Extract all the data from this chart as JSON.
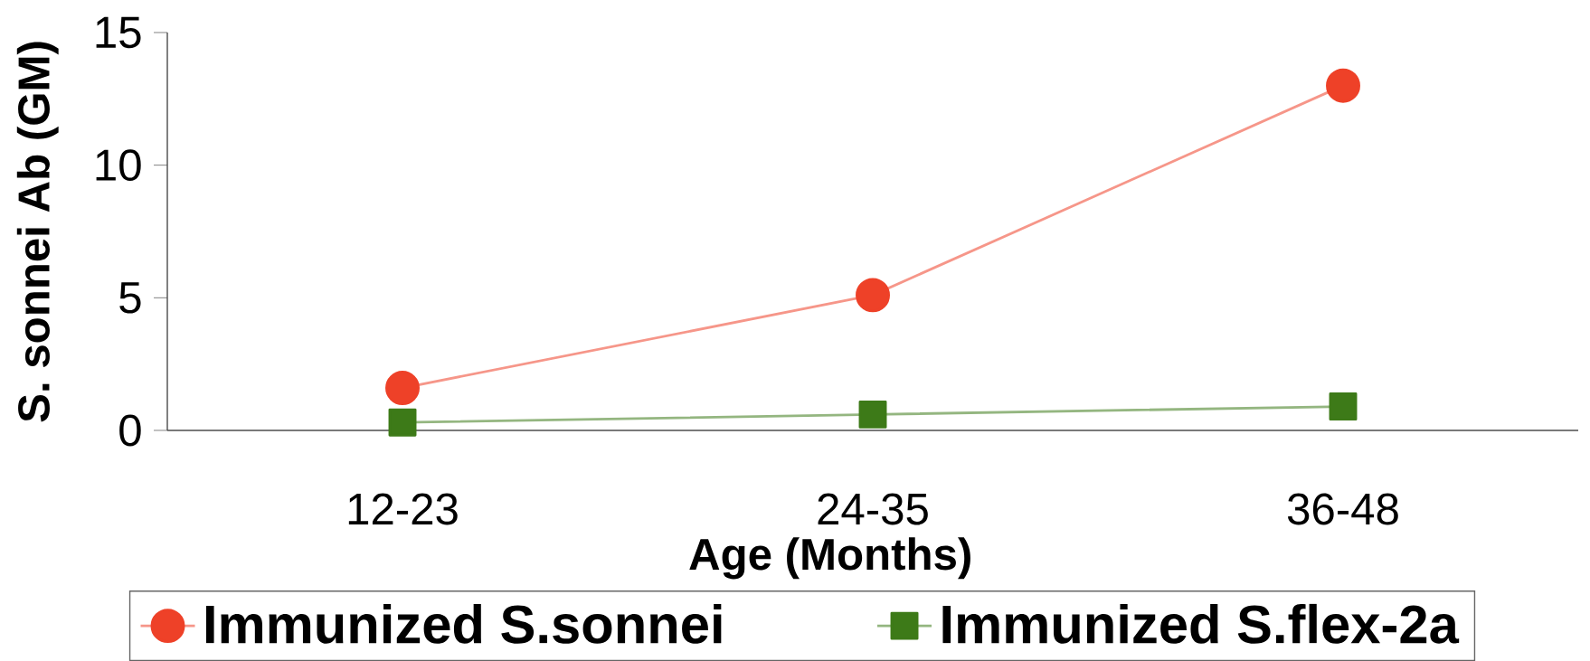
{
  "chart_data": {
    "type": "line",
    "xlabel": "Age (Months)",
    "ylabel": "S. sonnei Ab (GM)",
    "categories": [
      "12-23",
      "24-35",
      "36-48"
    ],
    "series": [
      {
        "name": "Immunized S.sonnei",
        "color": "#ee4128",
        "marker": "circle",
        "values": [
          1.6,
          5.1,
          13.0
        ]
      },
      {
        "name": "Immunized S.flex-2a",
        "color": "#3d7a18",
        "marker": "square",
        "values": [
          0.3,
          0.6,
          0.9
        ]
      }
    ],
    "ylim": [
      0,
      15
    ],
    "yticks": [
      0,
      5,
      10,
      15
    ],
    "grid": false,
    "legend": "bottom"
  }
}
